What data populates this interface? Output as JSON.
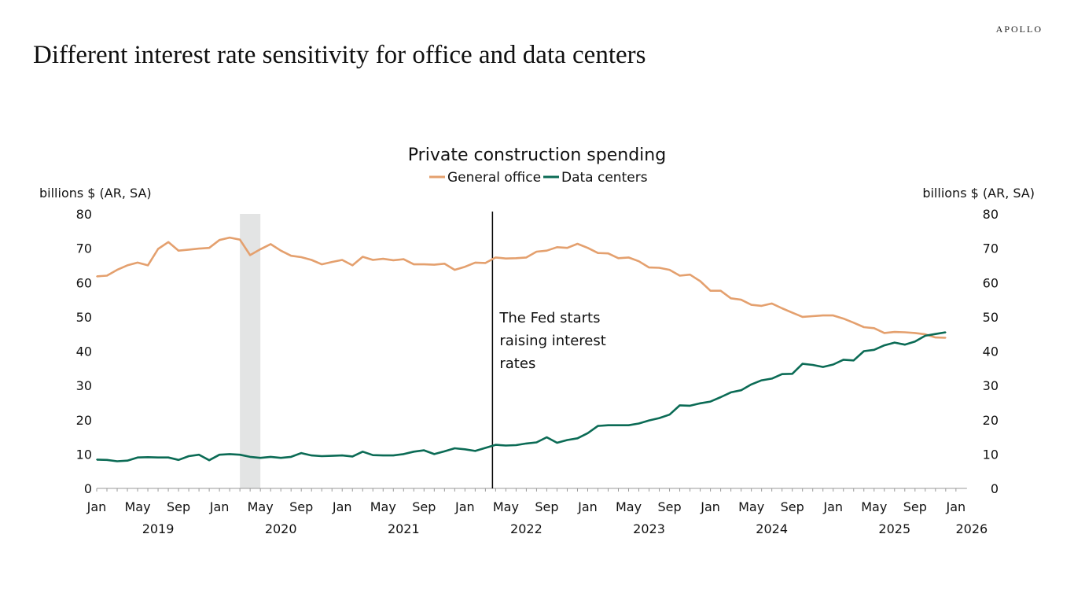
{
  "brand": "APOLLO",
  "title": "Different interest rate sensitivity for office and data centers",
  "chart_data": {
    "type": "line",
    "title": "Private construction spending",
    "ylabel_left": "billions $ (AR, SA)",
    "ylabel_right": "billions $ (AR, SA)",
    "ylim": [
      0,
      80
    ],
    "yticks": [
      0,
      10,
      20,
      30,
      40,
      50,
      60,
      70,
      80
    ],
    "x_start": "2019-01",
    "x_end": "2026-01",
    "x_tick_months": [
      "Jan",
      "May",
      "Sep"
    ],
    "years": [
      "2019",
      "2020",
      "2021",
      "2022",
      "2023",
      "2024",
      "2025",
      "2026"
    ],
    "legend_position": "top-center",
    "grid": false,
    "recession_shading": {
      "start": "2020-03",
      "end": "2020-05",
      "color": "#e3e4e4"
    },
    "annotation": {
      "date": "2022-03",
      "lines": [
        "The Fed starts",
        "raising interest",
        "rates"
      ]
    },
    "series": [
      {
        "name": "General office",
        "color": "#e4a06e",
        "start": "2019-01",
        "values": [
          61.8,
          62,
          63.7,
          65,
          65.8,
          65,
          69.8,
          71.8,
          69.3,
          69.6,
          69.9,
          70.1,
          72.4,
          73.1,
          72.5,
          68,
          69.7,
          71.2,
          69.3,
          67.8,
          67.4,
          66.6,
          65.3,
          66,
          66.6,
          65,
          67.5,
          66.6,
          66.9,
          66.5,
          66.8,
          65.3,
          65.3,
          65.2,
          65.5,
          63.7,
          64.6,
          65.8,
          65.7,
          67.3,
          67,
          67.1,
          67.3,
          69,
          69.3,
          70.3,
          70.1,
          71.3,
          70.1,
          68.6,
          68.5,
          67.1,
          67.3,
          66.2,
          64.4,
          64.3,
          63.7,
          62,
          62.3,
          60.4,
          57.6,
          57.6,
          55.4,
          55,
          53.5,
          53.2,
          53.9,
          52.5,
          51.2,
          50,
          50.2,
          50.4,
          50.4,
          49.5,
          48.3,
          47,
          46.7,
          45.3,
          45.6,
          45.5,
          45.3,
          44.9,
          44,
          43.9
        ]
      },
      {
        "name": "Data centers",
        "color": "#0b6b55",
        "start": "2019-01",
        "values": [
          8.4,
          8.3,
          7.9,
          8.1,
          9.0,
          9.1,
          9.0,
          9.0,
          8.3,
          9.4,
          9.8,
          8.2,
          9.8,
          10.0,
          9.8,
          9.2,
          8.9,
          9.2,
          8.9,
          9.2,
          10.3,
          9.6,
          9.4,
          9.5,
          9.6,
          9.3,
          10.7,
          9.7,
          9.6,
          9.6,
          10.0,
          10.7,
          11.1,
          10.0,
          10.8,
          11.7,
          11.4,
          10.9,
          11.8,
          12.7,
          12.5,
          12.6,
          13.1,
          13.4,
          14.9,
          13.3,
          14.1,
          14.6,
          16.1,
          18.2,
          18.4,
          18.4,
          18.4,
          18.9,
          19.8,
          20.5,
          21.5,
          24.2,
          24.1,
          24.8,
          25.3,
          26.6,
          28.0,
          28.6,
          30.3,
          31.5,
          32.0,
          33.3,
          33.4,
          36.3,
          36.0,
          35.4,
          36.1,
          37.5,
          37.3,
          40.0,
          40.4,
          41.7,
          42.5,
          41.9,
          42.8,
          44.5,
          45.0,
          45.5
        ]
      }
    ]
  }
}
